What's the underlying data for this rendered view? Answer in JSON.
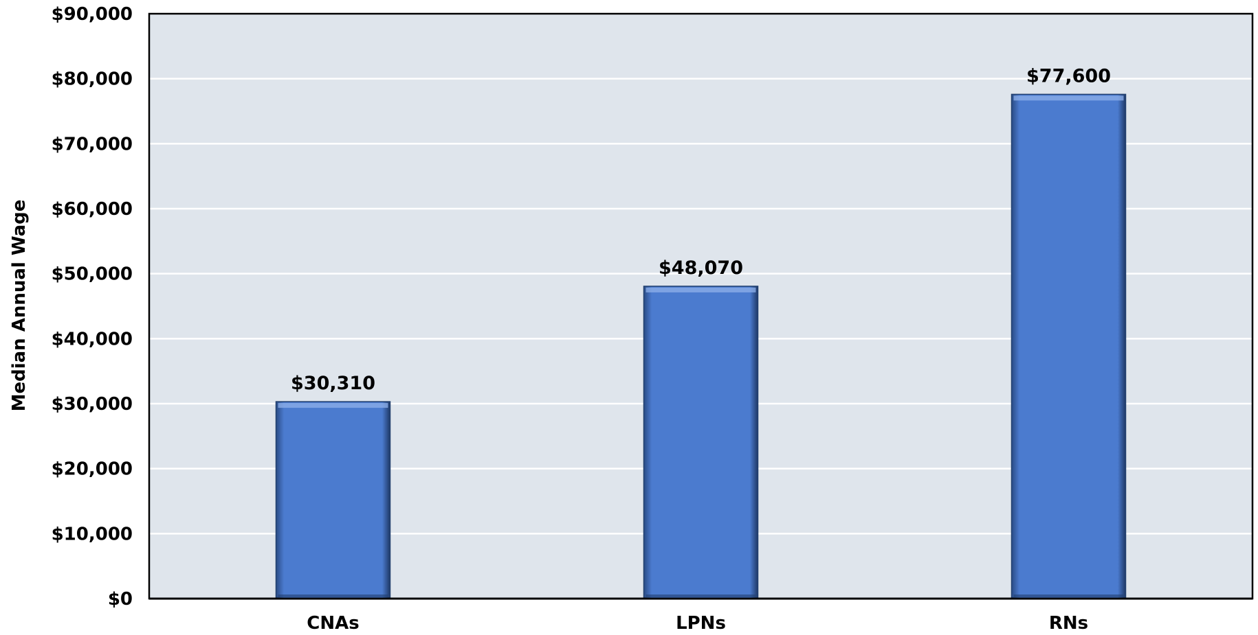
{
  "colors": {
    "plot_background": "#dfe5ec",
    "gridline": "#ffffff",
    "bar_fill": "#4b7bcf",
    "bar_edge_dark": "#22406f",
    "bar_edge_light": "#8fb0ea",
    "axis": "#000000"
  },
  "chart_data": {
    "type": "bar",
    "title": "",
    "xlabel": "",
    "ylabel": "Median Annual Wage",
    "categories": [
      "CNAs",
      "LPNs",
      "RNs"
    ],
    "values": [
      30310,
      48070,
      77600
    ],
    "value_labels": [
      "$30,310",
      "$48,070",
      "$77,600"
    ],
    "ylim": [
      0,
      90000
    ],
    "yticks": [
      0,
      10000,
      20000,
      30000,
      40000,
      50000,
      60000,
      70000,
      80000,
      90000
    ],
    "ytick_labels": [
      "$0",
      "$10,000",
      "$20,000",
      "$30,000",
      "$40,000",
      "$50,000",
      "$60,000",
      "$70,000",
      "$80,000",
      "$90,000"
    ],
    "grid": true,
    "legend": "none"
  }
}
